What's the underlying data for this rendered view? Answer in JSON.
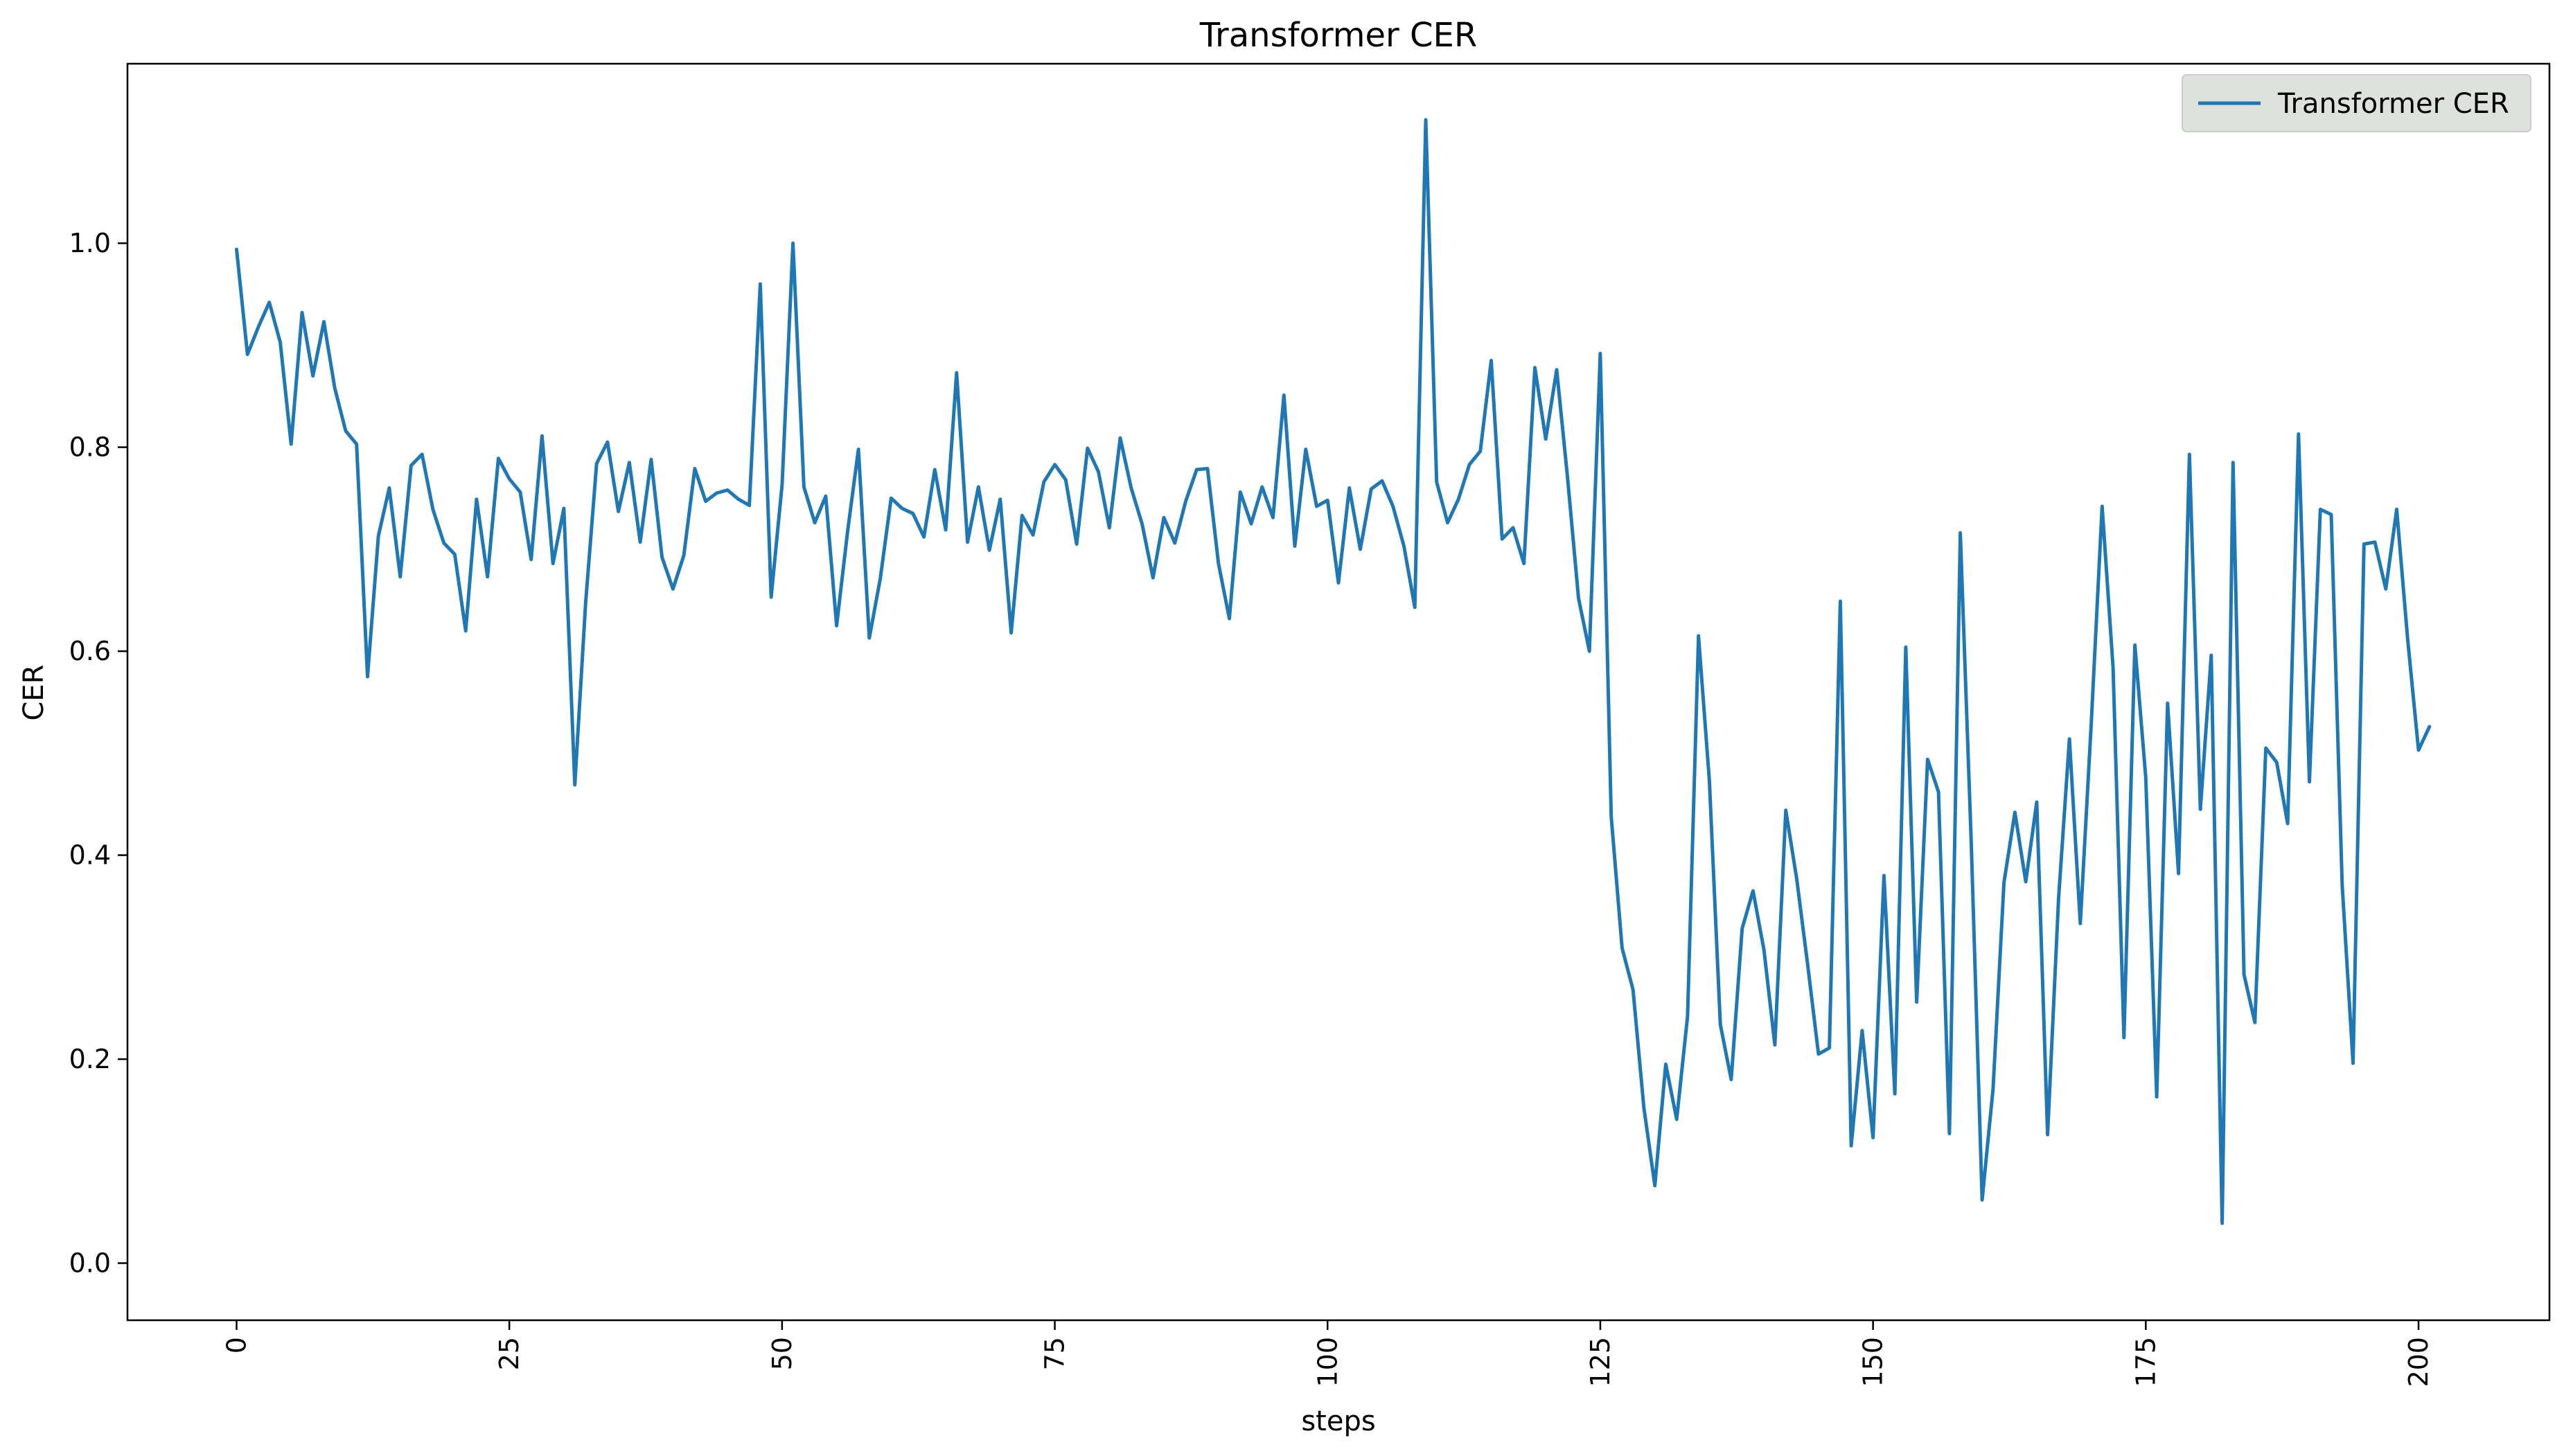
{
  "chart_data": {
    "type": "line",
    "title": "Transformer CER",
    "xlabel": "steps",
    "ylabel": "CER",
    "xlim": [
      -10,
      212
    ],
    "ylim": [
      -0.056,
      1.176
    ],
    "xticks": [
      0,
      25,
      50,
      75,
      100,
      125,
      150,
      175,
      200
    ],
    "xtick_rotation": 90,
    "yticks": [
      0.0,
      0.2,
      0.4,
      0.6,
      0.8,
      1.0
    ],
    "ytick_labels": [
      "0.0",
      "0.2",
      "0.4",
      "0.6",
      "0.8",
      "1.0"
    ],
    "grid": false,
    "legend": {
      "position": "top-right",
      "entries": [
        "Transformer CER"
      ]
    },
    "series": [
      {
        "name": "Transformer CER",
        "color": "#1f77b4",
        "x": [
          0,
          1,
          2,
          3,
          4,
          5,
          6,
          7,
          8,
          9,
          10,
          11,
          12,
          13,
          14,
          15,
          16,
          17,
          18,
          19,
          20,
          21,
          22,
          23,
          24,
          25,
          26,
          27,
          28,
          29,
          30,
          31,
          32,
          33,
          34,
          35,
          36,
          37,
          38,
          39,
          40,
          41,
          42,
          43,
          44,
          45,
          46,
          47,
          48,
          49,
          50,
          51,
          52,
          53,
          54,
          55,
          56,
          57,
          58,
          59,
          60,
          61,
          62,
          63,
          64,
          65,
          66,
          67,
          68,
          69,
          70,
          71,
          72,
          73,
          74,
          75,
          76,
          77,
          78,
          79,
          80,
          81,
          82,
          83,
          84,
          85,
          86,
          87,
          88,
          89,
          90,
          91,
          92,
          93,
          94,
          95,
          96,
          97,
          98,
          99,
          100,
          101,
          102,
          103,
          104,
          105,
          106,
          107,
          108,
          109,
          110,
          111,
          112,
          113,
          114,
          115,
          116,
          117,
          118,
          119,
          120,
          121,
          122,
          123,
          124,
          125,
          126,
          127,
          128,
          129,
          130,
          131,
          132,
          133,
          134,
          135,
          136,
          137,
          138,
          139,
          140,
          141,
          142,
          143,
          144,
          145,
          146,
          147,
          148,
          149,
          150,
          151,
          152,
          153,
          154,
          155,
          156,
          157,
          158,
          159,
          160,
          161,
          162,
          163,
          164,
          165,
          166,
          167,
          168,
          169,
          170,
          171,
          172,
          173,
          174,
          175,
          176,
          177,
          178,
          179,
          180,
          181,
          182,
          183,
          184,
          185,
          186,
          187,
          188,
          189,
          190,
          191,
          192,
          193,
          194,
          195,
          196,
          197,
          198,
          199,
          200,
          201
        ],
        "y": [
          0.994,
          0.891,
          0.918,
          0.942,
          0.903,
          0.803,
          0.932,
          0.87,
          0.923,
          0.858,
          0.816,
          0.803,
          0.575,
          0.713,
          0.76,
          0.673,
          0.782,
          0.793,
          0.739,
          0.706,
          0.695,
          0.62,
          0.749,
          0.673,
          0.789,
          0.769,
          0.756,
          0.69,
          0.811,
          0.686,
          0.74,
          0.469,
          0.648,
          0.784,
          0.805,
          0.737,
          0.785,
          0.707,
          0.788,
          0.692,
          0.661,
          0.694,
          0.779,
          0.747,
          0.755,
          0.758,
          0.749,
          0.743,
          0.96,
          0.653,
          0.763,
          1.0,
          0.761,
          0.726,
          0.752,
          0.625,
          0.717,
          0.798,
          0.613,
          0.671,
          0.75,
          0.74,
          0.735,
          0.712,
          0.778,
          0.719,
          0.873,
          0.707,
          0.761,
          0.699,
          0.749,
          0.618,
          0.733,
          0.714,
          0.766,
          0.783,
          0.768,
          0.705,
          0.799,
          0.776,
          0.721,
          0.809,
          0.76,
          0.725,
          0.672,
          0.731,
          0.706,
          0.747,
          0.778,
          0.779,
          0.686,
          0.632,
          0.756,
          0.725,
          0.761,
          0.731,
          0.851,
          0.703,
          0.798,
          0.742,
          0.748,
          0.667,
          0.76,
          0.7,
          0.759,
          0.767,
          0.742,
          0.703,
          0.643,
          1.121,
          0.766,
          0.726,
          0.749,
          0.783,
          0.796,
          0.885,
          0.71,
          0.721,
          0.686,
          0.878,
          0.808,
          0.876,
          0.77,
          0.652,
          0.6,
          0.892,
          0.438,
          0.309,
          0.268,
          0.152,
          0.076,
          0.195,
          0.141,
          0.242,
          0.615,
          0.473,
          0.234,
          0.18,
          0.328,
          0.365,
          0.307,
          0.214,
          0.444,
          0.377,
          0.293,
          0.205,
          0.211,
          0.649,
          0.115,
          0.228,
          0.123,
          0.38,
          0.166,
          0.604,
          0.256,
          0.494,
          0.462,
          0.127,
          0.716,
          0.412,
          0.062,
          0.171,
          0.373,
          0.442,
          0.374,
          0.452,
          0.126,
          0.357,
          0.514,
          0.333,
          0.529,
          0.742,
          0.584,
          0.221,
          0.606,
          0.476,
          0.163,
          0.549,
          0.382,
          0.793,
          0.445,
          0.596,
          0.039,
          0.785,
          0.283,
          0.236,
          0.505,
          0.491,
          0.431,
          0.813,
          0.472,
          0.739,
          0.734,
          0.371,
          0.196,
          0.705,
          0.707,
          0.661,
          0.739,
          0.612,
          0.503,
          0.526
        ]
      }
    ]
  }
}
